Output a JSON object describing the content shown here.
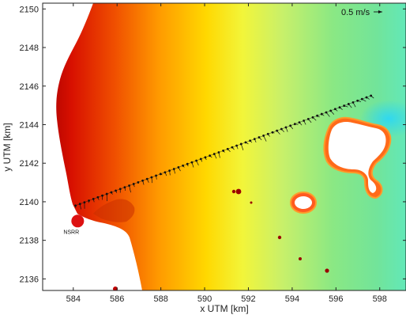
{
  "chart_data": {
    "type": "scatter",
    "xlabel": "x UTM [km]",
    "ylabel": "y UTM [km]",
    "xlim": [
      582.6,
      599.2
    ],
    "ylim": [
      2135.4,
      2150.3
    ],
    "x_ticks": [
      584,
      586,
      588,
      590,
      592,
      594,
      596,
      598
    ],
    "y_ticks": [
      2136,
      2138,
      2140,
      2142,
      2144,
      2146,
      2148,
      2150
    ],
    "background": "filled contour speed field, red near west coast grading through yellow to green and cyan in the east",
    "colors": {
      "high": "#d40000",
      "mid": "#f5f500",
      "low": "#7ee87e",
      "land": "#ffffff",
      "site_marker": "#dd1111"
    },
    "scale_label": "0.5 m/s",
    "scale_vector_x": 0.5,
    "site_label": "NSRR",
    "site": {
      "x": 584.2,
      "y": 2139.0
    },
    "transect": {
      "start": [
        584.1,
        2139.8
      ],
      "end": [
        597.6,
        2145.5
      ],
      "stations": 67
    },
    "vectors_x_comp_first": 0.01,
    "vectors_x_comp_last": 0.14,
    "vectors_y_comp_sample": [
      -0.16,
      -0.22,
      -0.3,
      -0.15,
      -0.1
    ]
  }
}
